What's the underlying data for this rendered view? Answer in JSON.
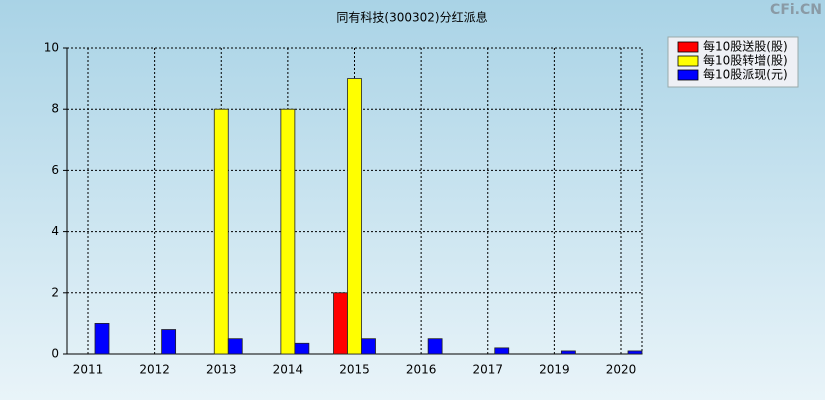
{
  "chart_data": {
    "type": "bar",
    "title": "同有科技(300302)分红派息",
    "watermark": "CFi.CN",
    "categories": [
      "2011",
      "2012",
      "2013",
      "2014",
      "2015",
      "2016",
      "2017",
      "2019",
      "2020"
    ],
    "series": [
      {
        "name": "每10股送股(股)",
        "color": "#ff0000",
        "values": [
          null,
          null,
          null,
          null,
          2,
          null,
          null,
          null,
          null
        ]
      },
      {
        "name": "每10股转增(股)",
        "color": "#ffff00",
        "values": [
          null,
          null,
          8,
          8,
          9,
          null,
          null,
          null,
          null
        ]
      },
      {
        "name": "每10股派现(元)",
        "color": "#0000ff",
        "values": [
          1.0,
          0.8,
          0.5,
          0.35,
          0.5,
          0.5,
          0.2,
          0.1,
          0.1
        ]
      }
    ],
    "ylim": [
      0,
      10
    ],
    "yticks": [
      0,
      2,
      4,
      6,
      8,
      10
    ],
    "grid": true,
    "legend": "top-right"
  }
}
